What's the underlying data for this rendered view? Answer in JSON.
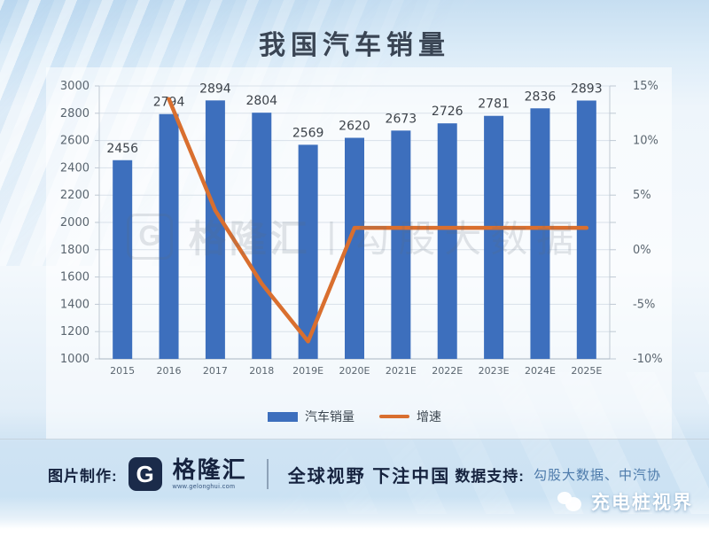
{
  "title": "我国汽车销量",
  "watermark": {
    "logo_letter": "G",
    "brand": "格隆汇",
    "divider": "|",
    "text": "勾股大数据"
  },
  "chart_data": {
    "type": "bar",
    "title": "我国汽车销量",
    "categories": [
      "2015",
      "2016",
      "2017",
      "2018",
      "2019E",
      "2020E",
      "2021E",
      "2022E",
      "2023E",
      "2024E",
      "2025E"
    ],
    "series": [
      {
        "name": "汽车销量",
        "type": "bar",
        "axis": "left",
        "values": [
          2456,
          2794,
          2894,
          2804,
          2569,
          2620,
          2673,
          2726,
          2781,
          2836,
          2893
        ],
        "color": "#3d6fbd"
      },
      {
        "name": "增速",
        "type": "line",
        "axis": "right",
        "unit": "%",
        "values": [
          null,
          13.8,
          3.6,
          -3.1,
          -8.4,
          2.0,
          2.0,
          2.0,
          2.0,
          2.0,
          2.0
        ],
        "color": "#d96f2f"
      }
    ],
    "left_axis": {
      "min": 1000,
      "max": 3000,
      "ticks": [
        3000,
        2800,
        2600,
        2400,
        2200,
        2000,
        1800,
        1600,
        1400,
        1200,
        1000
      ]
    },
    "right_axis": {
      "min": -10,
      "max": 15,
      "minor_step": 2.5,
      "labels": [
        "15%",
        "10%",
        "5%",
        "0%",
        "-5%",
        "-10%"
      ],
      "label_values": [
        15,
        10,
        5,
        0,
        -5,
        -10
      ]
    },
    "grid": true,
    "legend_position": "bottom",
    "value_labels": true
  },
  "legend": {
    "bar_label": "汽车销量",
    "line_label": "增速"
  },
  "footer": {
    "made_by_label": "图片制作:",
    "logo_letter": "G",
    "logo_brand": "格隆汇",
    "logo_url": "www.gelonghui.com",
    "slogan": "全球视野 下注中国",
    "data_support_label": "数据支持:",
    "data_sources": "勾股大数据、中汽协"
  },
  "badge": {
    "text": "充电桩视界"
  }
}
